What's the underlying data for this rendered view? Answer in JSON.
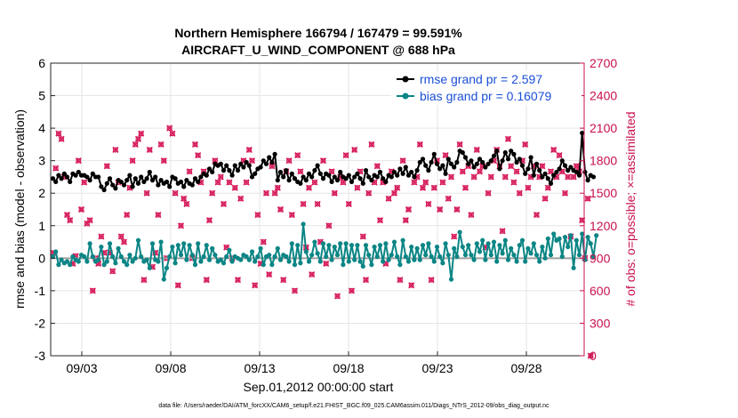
{
  "chart_data": {
    "type": "line",
    "title_line1": "Northern Hemisphere 166794 / 167479 = 99.591%",
    "title_line2": "AIRCRAFT_U_WIND_COMPONENT @ 688 hPa",
    "xlabel": "Sep.01,2012 00:00:00 start",
    "ylabel_left": "rmse and bias (model - observation)",
    "ylabel_right": "# of obs: o=possible; ×=assimilated",
    "footnote": "data file: /Users/raeder/DAI/ATM_forcXX/CAM6_setup/f.e21.FHIST_BGC.f09_025.CAM6assim.011/Diags_NTrS_2012-09/obs_diag_output.nc",
    "x_range_days": [
      0.75,
      30.75
    ],
    "x_ticks": [
      {
        "day": 2.5,
        "label": "09/03"
      },
      {
        "day": 7.5,
        "label": "09/08"
      },
      {
        "day": 12.5,
        "label": "09/13"
      },
      {
        "day": 17.5,
        "label": "09/18"
      },
      {
        "day": 22.5,
        "label": "09/23"
      },
      {
        "day": 27.5,
        "label": "09/28"
      }
    ],
    "ylim_left": [
      -3,
      6
    ],
    "yticks_left": [
      "-3",
      "-2",
      "-1",
      "0",
      "1",
      "2",
      "3",
      "4",
      "5",
      "6"
    ],
    "ylim_right": [
      0,
      2700
    ],
    "yticks_right": [
      "0",
      "300",
      "600",
      "900",
      "1200",
      "1500",
      "1800",
      "2100",
      "2400",
      "2700"
    ],
    "colors": {
      "rmse": "#000000",
      "bias": "#0b8585",
      "obs": "#d6185a",
      "zero_line": "#a0a0a0",
      "legend_text": "#1a4fd6",
      "right_axis": "#c8104e"
    },
    "legend": {
      "placement": "top-right",
      "rmse_label": "rmse grand pr = 2.597",
      "bias_label": "bias grand pr = 0.16079"
    },
    "series": [
      {
        "name": "rmse grand pr = 2.597",
        "values": [
          2.45,
          2.35,
          2.55,
          2.45,
          2.6,
          2.5,
          2.35,
          2.6,
          2.55,
          2.65,
          2.55,
          2.55,
          2.5,
          2.4,
          2.6,
          2.5,
          2.5,
          2.2,
          2.1,
          2.3,
          2.45,
          2.25,
          2.15,
          2.4,
          2.35,
          2.25,
          2.4,
          2.55,
          2.2,
          2.45,
          2.3,
          2.5,
          2.35,
          2.45,
          2.65,
          2.4,
          2.5,
          2.25,
          2.4,
          2.3,
          2.35,
          2.2,
          2.5,
          2.45,
          2.3,
          2.35,
          2.2,
          2.4,
          2.3,
          2.25,
          2.45,
          2.35,
          2.5,
          2.6,
          2.55,
          2.75,
          2.65,
          2.9,
          2.85,
          2.9,
          2.7,
          2.85,
          2.7,
          2.55,
          2.85,
          2.7,
          2.9,
          2.8,
          2.95,
          2.85,
          2.5,
          2.6,
          2.75,
          2.8,
          3.0,
          2.9,
          3.1,
          2.95,
          3.2,
          2.4,
          2.65,
          2.5,
          2.7,
          2.4,
          2.6,
          2.45,
          2.35,
          2.3,
          2.5,
          2.4,
          2.6,
          2.5,
          2.7,
          2.85,
          2.6,
          2.45,
          2.6,
          2.55,
          2.35,
          2.5,
          2.4,
          2.65,
          2.5,
          2.45,
          2.55,
          2.35,
          2.5,
          2.6,
          2.45,
          2.3,
          2.7,
          2.5,
          2.4,
          2.55,
          2.5,
          2.65,
          2.45,
          2.35,
          2.55,
          2.5,
          2.65,
          2.55,
          2.75,
          2.6,
          2.8,
          2.55,
          2.65,
          2.5,
          2.7,
          2.95,
          3.05,
          2.85,
          2.7,
          2.95,
          3.2,
          2.9,
          2.75,
          2.85,
          2.6,
          3.05,
          2.9,
          2.8,
          2.95,
          3.3,
          3.25,
          3.1,
          2.9,
          3.0,
          2.8,
          2.9,
          3.05,
          2.95,
          2.8,
          2.9,
          3.0,
          3.15,
          3.3,
          2.75,
          3.0,
          3.25,
          3.05,
          3.3,
          3.2,
          2.95,
          3.05,
          2.85,
          2.6,
          2.75,
          3.1,
          2.55,
          2.9,
          2.7,
          2.5,
          2.6,
          2.45,
          2.3,
          2.55,
          2.65,
          2.75,
          3.0,
          2.85,
          2.7,
          2.8,
          2.7,
          2.65,
          2.55,
          3.85,
          2.65,
          2.4,
          2.55,
          2.5
        ]
      },
      {
        "name": "bias grand pr = 0.16079",
        "values": [
          0.05,
          0.2,
          -0.2,
          -0.05,
          -0.15,
          -0.1,
          -0.2,
          0.05,
          -0.05,
          -0.1,
          0.1,
          0.05,
          -0.1,
          0.45,
          0.05,
          -0.1,
          -0.05,
          0.35,
          -0.2,
          -0.1,
          0.45,
          0.05,
          -0.15,
          0.3,
          0.05,
          -0.1,
          -0.2,
          0.1,
          -0.1,
          0.0,
          0.55,
          0.05,
          -0.1,
          -0.05,
          -0.3,
          0.45,
          -0.05,
          -0.1,
          0.5,
          -0.65,
          -0.3,
          0.05,
          0.35,
          -0.15,
          0.4,
          0.1,
          0.45,
          -0.05,
          0.4,
          0.1,
          -0.2,
          0.45,
          -0.1,
          0.05,
          0.4,
          -0.05,
          0.3,
          0.1,
          -0.1,
          -0.05,
          -0.15,
          0.05,
          0.25,
          -0.1,
          0.05,
          0.0,
          -0.05,
          0.1,
          0.05,
          -0.05,
          0.2,
          -0.1,
          0.05,
          0.3,
          -0.2,
          0.05,
          0.1,
          -0.2,
          0.05,
          0.3,
          -0.05,
          0.1,
          0.05,
          -0.1,
          0.45,
          -0.2,
          0.4,
          -0.15,
          1.05,
          0.2,
          -0.1,
          0.1,
          0.5,
          0.15,
          -0.1,
          0.45,
          0.05,
          0.4,
          -0.05,
          0.35,
          0.1,
          0.45,
          -0.2,
          0.45,
          -0.1,
          0.4,
          -0.05,
          0.4,
          -0.1,
          -0.25,
          0.4,
          0.1,
          -0.2,
          0.35,
          0.05,
          0.4,
          -0.1,
          0.45,
          -0.05,
          0.1,
          0.5,
          0.05,
          -0.2,
          0.55,
          0.05,
          -0.1,
          0.35,
          -0.05,
          0.3,
          -0.05,
          0.4,
          0.1,
          0.45,
          0.05,
          -0.1,
          0.35,
          0.05,
          -0.15,
          0.45,
          0.1,
          -0.65,
          0.3,
          0.05,
          0.8,
          0.35,
          0.1,
          0.4,
          0.1,
          -0.05,
          0.45,
          0.2,
          0.55,
          -0.05,
          0.45,
          0.1,
          0.5,
          -0.1,
          0.4,
          0.15,
          0.55,
          -0.05,
          0.3,
          0.1,
          -0.1,
          0.4,
          0.55,
          -0.1,
          0.3,
          0.15,
          0.45,
          0.1,
          -0.1,
          0.35,
          0.0,
          0.6,
          0.1,
          0.75,
          0.55,
          0.6,
          0.05,
          0.65,
          0.35,
          0.7,
          -0.3,
          0.55,
          0.1,
          0.75,
          -0.05,
          0.65,
          0.45,
          0.05,
          0.7
        ]
      },
      {
        "name": "obs",
        "values": [
          950,
          1730,
          2050,
          2000,
          1650,
          1300,
          1250,
          850,
          920,
          1800,
          1350,
          1600,
          1220,
          1250,
          600,
          900,
          850,
          1100,
          950,
          1750,
          950,
          780,
          1900,
          1600,
          1100,
          1050,
          1300,
          1550,
          1800,
          1950,
          2000,
          2050,
          700,
          1500,
          1900,
          820,
          950,
          1300,
          1950,
          1800,
          900,
          2100,
          2050,
          1500,
          650,
          1200,
          1450,
          1400,
          1700,
          900,
          1950,
          1850,
          1600,
          1700,
          700,
          1250,
          1500,
          1800,
          1600,
          1650,
          1400,
          1000,
          1600,
          900,
          1550,
          700,
          1450,
          1800,
          1600,
          1900,
          1800,
          650,
          1300,
          850,
          1050,
          1500,
          750,
          1750,
          1500,
          1550,
          1350,
          700,
          1700,
          1800,
          1300,
          600,
          1850,
          1700,
          1400,
          1000,
          1550,
          750,
          1600,
          1400,
          1050,
          1800,
          850,
          1200,
          1700,
          1500,
          550,
          1650,
          1600,
          1850,
          1400,
          600,
          1900,
          1550,
          1700,
          1100,
          700,
          1500,
          1950,
          1600,
          1750,
          1250,
          1600,
          850,
          1450,
          1700,
          1500,
          1550,
          700,
          1800,
          1250,
          1350,
          650,
          1600,
          1650,
          1950,
          1550,
          1600,
          1400,
          700,
          1550,
          1800,
          1350,
          1600,
          1850,
          1450,
          1650,
          1100,
          1350,
          1950,
          1700,
          1550,
          1750,
          1300,
          1650,
          1900,
          1700,
          1750,
          1000,
          1500,
          1650,
          1800,
          1900,
          1750,
          1150,
          1650,
          2000,
          1750,
          1600,
          1700,
          1500,
          1800,
          1950,
          1550,
          1650,
          1750,
          1300,
          1650,
          1750,
          1450,
          1550,
          1700,
          1900,
          1650,
          1850,
          1700,
          1500,
          1650,
          1100,
          1650,
          1750,
          1700,
          1250,
          900,
          1450,
          0
        ]
      }
    ]
  }
}
